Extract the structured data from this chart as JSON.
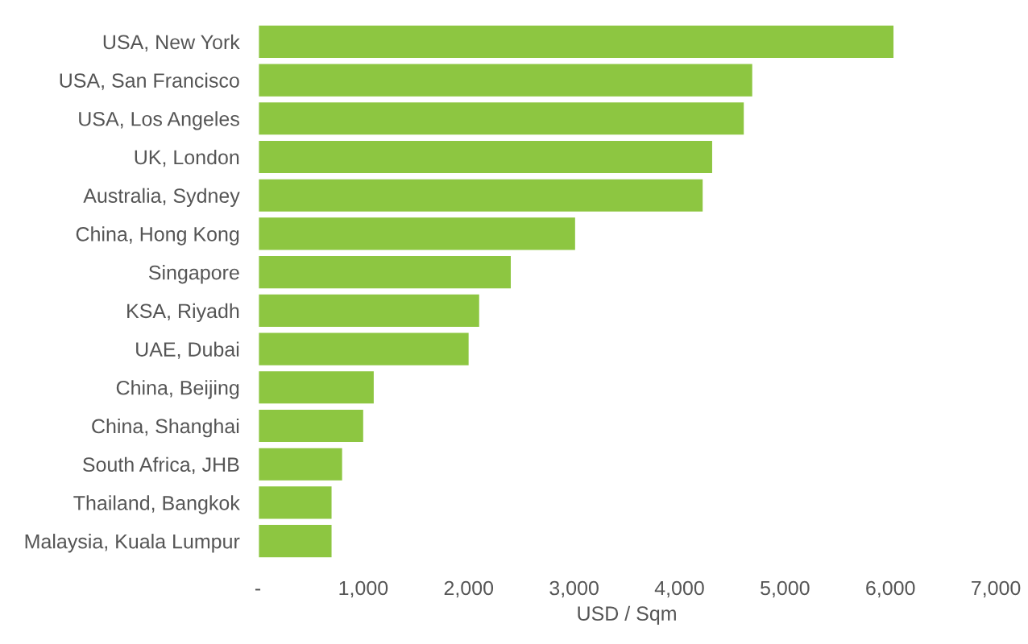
{
  "chart_data": {
    "type": "bar",
    "orientation": "horizontal",
    "xlabel": "USD / Sqm",
    "color": "#8dc641",
    "categories": [
      "USA, New York",
      "USA, San Francisco",
      "USA, Los Angeles",
      "UK, London",
      "Australia, Sydney",
      "China, Hong Kong",
      "Singapore",
      "KSA, Riyadh",
      "UAE, Dubai",
      "China, Beijing",
      "China, Shanghai",
      "South Africa, JHB",
      "Thailand, Bangkok",
      "Malaysia, Kuala Lumpur"
    ],
    "values": [
      6040,
      4700,
      4620,
      4320,
      4230,
      3020,
      2410,
      2110,
      2010,
      1110,
      1010,
      810,
      710,
      710
    ],
    "xlim": [
      0,
      7000
    ],
    "xticks": [
      {
        "value": 0,
        "label": "-"
      },
      {
        "value": 1000,
        "label": "1,000"
      },
      {
        "value": 2000,
        "label": "2,000"
      },
      {
        "value": 3000,
        "label": "3,000"
      },
      {
        "value": 4000,
        "label": "4,000"
      },
      {
        "value": 5000,
        "label": "5,000"
      },
      {
        "value": 6000,
        "label": "6,000"
      },
      {
        "value": 7000,
        "label": "7,000"
      }
    ]
  }
}
